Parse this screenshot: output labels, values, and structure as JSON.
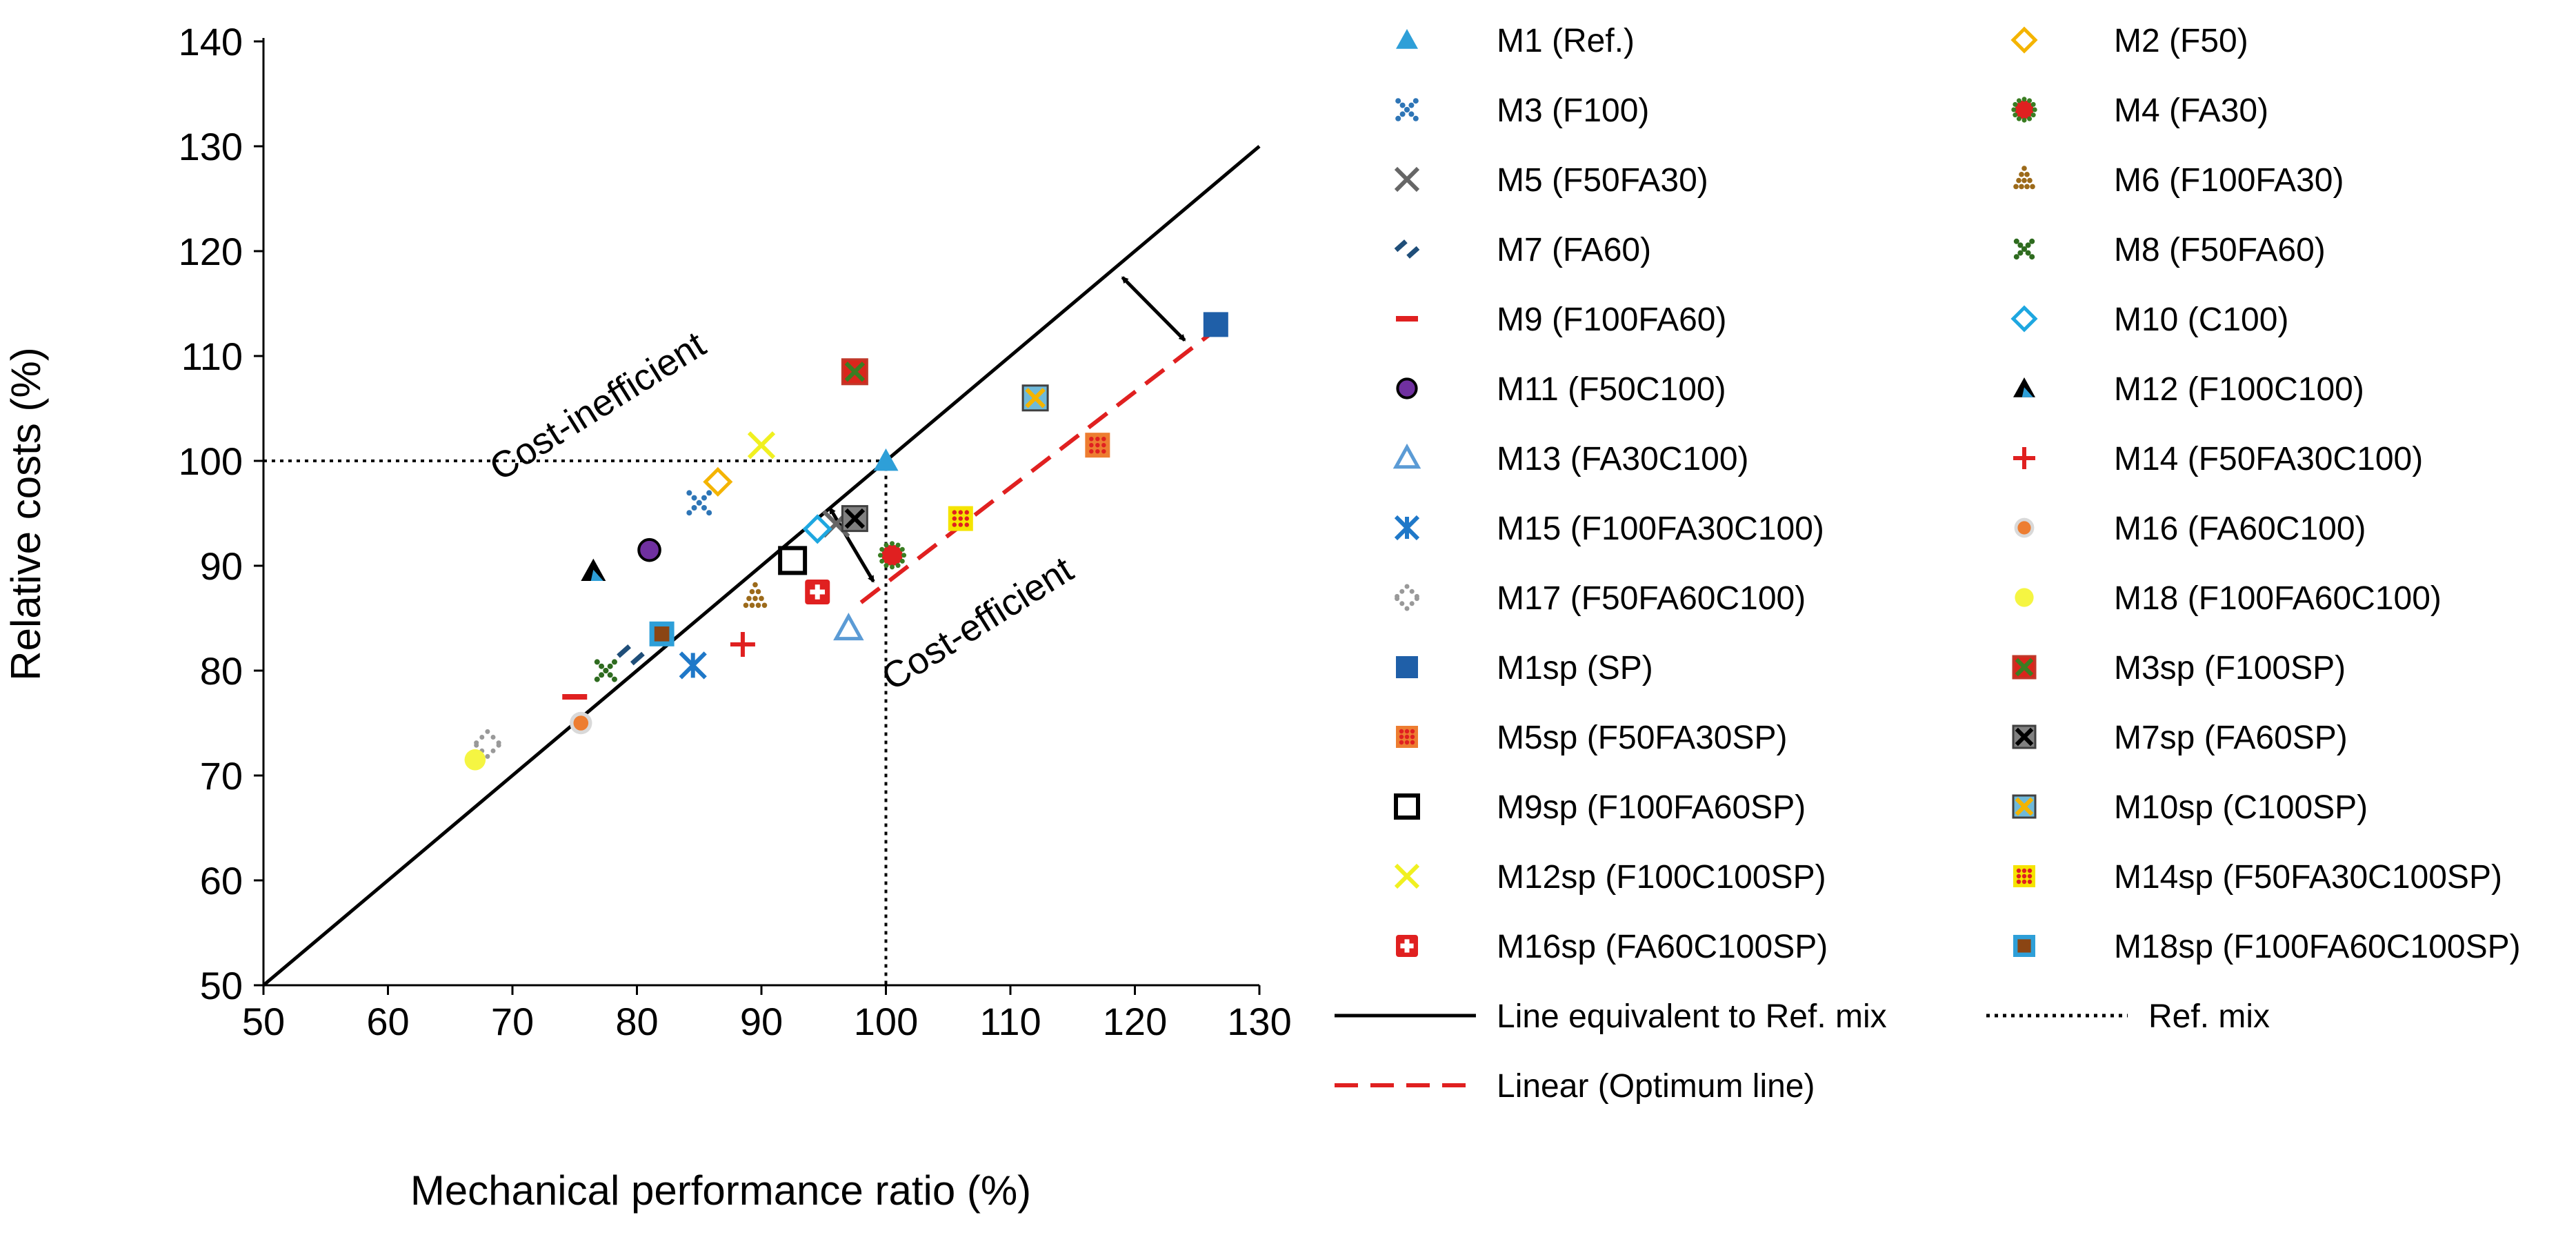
{
  "chart_data": {
    "type": "scatter",
    "title": "",
    "xlabel": "Mechanical performance ratio (%)",
    "ylabel": "Relative costs (%)",
    "xlim": [
      50,
      130
    ],
    "ylim": [
      50,
      140
    ],
    "xticks": [
      50,
      60,
      70,
      80,
      90,
      100,
      110,
      120,
      130
    ],
    "yticks": [
      50,
      60,
      70,
      80,
      90,
      100,
      110,
      120,
      130,
      140
    ],
    "grid": false,
    "legend_position": "right",
    "annotations": [
      {
        "text": "Cost-inefficient",
        "x": 69,
        "y": 98,
        "rotation": -32
      },
      {
        "text": "Cost-efficient",
        "x": 100.5,
        "y": 78,
        "rotation": -32
      }
    ],
    "series": [
      {
        "name": "M1 (Ref.)",
        "marker": "triangle",
        "color": "#2e9fd8",
        "x": 100,
        "y": 100
      },
      {
        "name": "M2 (F50)",
        "marker": "diamond-open",
        "color": "#f4b400",
        "x": 86.5,
        "y": 98
      },
      {
        "name": "M3 (F100)",
        "marker": "dotted-cross",
        "color": "#2e75b6",
        "x": 85,
        "y": 96
      },
      {
        "name": "M4 (FA30)",
        "marker": "dotted-circle",
        "color": "#e02020",
        "x": 100.5,
        "y": 91
      },
      {
        "name": "M5 (F50FA30)",
        "marker": "x",
        "color": "#666666",
        "x": 96,
        "y": 94
      },
      {
        "name": "M6 (F100FA30)",
        "marker": "dotted-triangle",
        "color": "#9c6a1a",
        "x": 89.5,
        "y": 87
      },
      {
        "name": "M7 (FA60)",
        "marker": "slash",
        "color": "#1f4e79",
        "x": 79.5,
        "y": 81.5
      },
      {
        "name": "M8 (F50FA60)",
        "marker": "dotted-x",
        "color": "#2e6b1f",
        "x": 77.5,
        "y": 80
      },
      {
        "name": "M9 (F100FA60)",
        "marker": "dash",
        "color": "#e02020",
        "x": 75,
        "y": 77.5
      },
      {
        "name": "M10 (C100)",
        "marker": "diamond-open",
        "color": "#1ea7e0",
        "x": 94.5,
        "y": 93.5
      },
      {
        "name": "M11 (F50C100)",
        "marker": "circle",
        "color": "#7030a0",
        "x": 81,
        "y": 91.5
      },
      {
        "name": "M12 (F100C100)",
        "marker": "triangle-bicolor",
        "color": "#2e9fd8",
        "x": 76.5,
        "y": 89.5
      },
      {
        "name": "M13 (FA30C100)",
        "marker": "triangle-open",
        "color": "#5b9bd5",
        "x": 97,
        "y": 84
      },
      {
        "name": "M14 (F50FA30C100)",
        "marker": "plus",
        "color": "#e02020",
        "x": 88.5,
        "y": 82.5
      },
      {
        "name": "M15 (F100FA30C100)",
        "marker": "asterisk",
        "color": "#1f78c8",
        "x": 84.5,
        "y": 80.5
      },
      {
        "name": "M16 (FA60C100)",
        "marker": "circle-ring",
        "color": "#ed7d31",
        "x": 75.5,
        "y": 75
      },
      {
        "name": "M17 (F50FA60C100)",
        "marker": "dotted-diamond",
        "color": "#999999",
        "x": 68,
        "y": 73
      },
      {
        "name": "M18 (F100FA60C100)",
        "marker": "circle",
        "color": "#f5f542",
        "x": 67,
        "y": 71.5
      },
      {
        "name": "M1sp (SP)",
        "marker": "square",
        "color": "#1f5fa8",
        "x": 126.5,
        "y": 113
      },
      {
        "name": "M3sp (F100SP)",
        "marker": "square-x",
        "color": "#d9261c",
        "x": 97.5,
        "y": 108.5
      },
      {
        "name": "M5sp (F50FA30SP)",
        "marker": "square-dotted",
        "color": "#ed7d31",
        "x": 117,
        "y": 101.5
      },
      {
        "name": "M7sp (FA60SP)",
        "marker": "square-x",
        "color": "#808080",
        "x": 97.5,
        "y": 94.5
      },
      {
        "name": "M9sp (F100FA60SP)",
        "marker": "square-open",
        "color": "#000000",
        "x": 92.5,
        "y": 90.5
      },
      {
        "name": "M10sp (C100SP)",
        "marker": "square-x",
        "color": "#6fb9d9",
        "x": 112,
        "y": 106
      },
      {
        "name": "M12sp (F100C100SP)",
        "marker": "x",
        "color": "#f0f020",
        "x": 90,
        "y": 101.5
      },
      {
        "name": "M14sp (F50FA30C100SP)",
        "marker": "square-dotted",
        "color": "#f5e400",
        "x": 106,
        "y": 94.5
      },
      {
        "name": "M16sp (FA60C100SP)",
        "marker": "square-plus",
        "color": "#e02020",
        "x": 94.5,
        "y": 87.5
      },
      {
        "name": "M18sp (F100FA60C100SP)",
        "marker": "square-inner",
        "color": "#2e9fd8",
        "x": 82,
        "y": 83.5
      }
    ],
    "lines": [
      {
        "name": "Line equivalent to Ref. mix",
        "style": "solid",
        "color": "#000000",
        "x": [
          50,
          130
        ],
        "y": [
          50,
          130
        ]
      },
      {
        "name": "Linear (Optimum line)",
        "style": "dashed",
        "color": "#e02020",
        "x": [
          98,
          126.5
        ],
        "y": [
          86.5,
          112.5
        ]
      },
      {
        "name": "Ref. mix",
        "style": "dotted",
        "color": "#000000",
        "x": [
          50,
          100,
          100
        ],
        "y": [
          100,
          100,
          50
        ]
      }
    ],
    "arrows": [
      {
        "from": [
          119,
          117.5
        ],
        "to": [
          124,
          111.5
        ]
      },
      {
        "from": [
          95.5,
          95.5
        ],
        "to": [
          99,
          88.5
        ]
      }
    ]
  }
}
